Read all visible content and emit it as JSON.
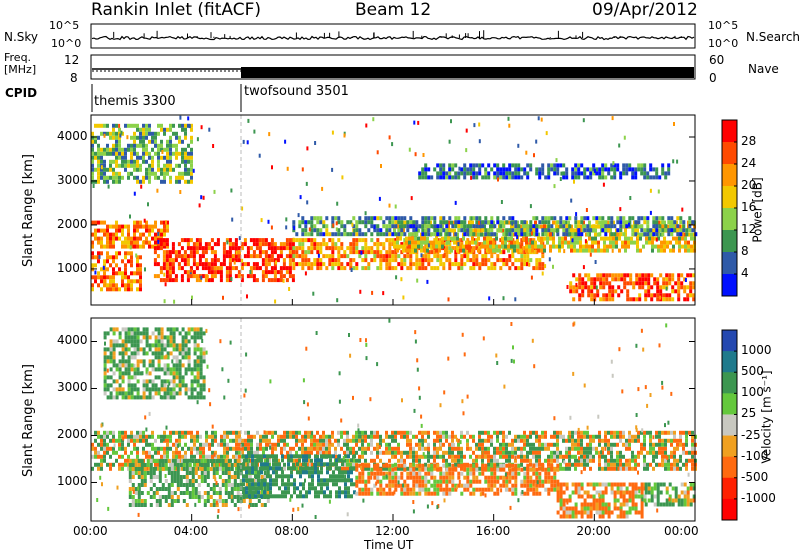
{
  "header": {
    "station": "Rankin Inlet (fitACF)",
    "beam": "Beam 12",
    "date": "09/Apr/2012"
  },
  "status_panels": {
    "nsky_label": "N.Sky",
    "nsearch_label": "N.Search",
    "freq_label_1": "Freq.",
    "freq_label_2": "[MHz]",
    "nave_label": "Nave",
    "cpid_label": "CPID",
    "noise_ticks_left": [
      "10^5",
      "10^0"
    ],
    "noise_ticks_right": [
      "10^5",
      "10^0"
    ],
    "freq_ticks": [
      "12",
      "8"
    ],
    "nave_ticks": [
      "60",
      "0"
    ],
    "cpid_segments": [
      {
        "name": "themis 3300",
        "start_hour": 0,
        "end_hour": 6.05
      },
      {
        "name": "twofsound 3501",
        "start_hour": 6.05,
        "end_hour": 24
      }
    ]
  },
  "axes": {
    "ylabel": "Slant Range [km]",
    "y_ticks": [
      "4000",
      "3000",
      "2000",
      "1000"
    ],
    "x_ticks": [
      "00:00",
      "04:00",
      "08:00",
      "12:00",
      "16:00",
      "20:00",
      "00:00"
    ],
    "xlabel": "Time UT"
  },
  "power_colorbar": {
    "label": "Power [dB]",
    "ticks": [
      "28",
      "24",
      "20",
      "16",
      "12",
      "8",
      "4"
    ],
    "colors": [
      "#ff0000",
      "#ff4a00",
      "#ff9600",
      "#f2c800",
      "#8cd24a",
      "#3c9650",
      "#2f5aa8",
      "#0010ff"
    ]
  },
  "velocity_colorbar": {
    "label": "Velocity [m s⁻¹]",
    "ticks": [
      "1000",
      "500",
      "100",
      "25",
      "-25",
      "-100",
      "-500",
      "-1000"
    ],
    "colors": [
      "#2448b0",
      "#1f7a8c",
      "#3c9650",
      "#64c83c",
      "#c8c8c0",
      "#f0a020",
      "#ff6a10",
      "#ff2000",
      "#ff0000"
    ]
  },
  "chart_data": {
    "type": "heatmap",
    "x_range_hours": [
      0,
      24
    ],
    "y_range_km": [
      180,
      4500
    ],
    "power_regions": [
      {
        "t0": 0.0,
        "t1": 3.0,
        "r0": 1550,
        "r1": 2100,
        "value_db": 24
      },
      {
        "t0": 0.0,
        "t1": 2.0,
        "r0": 550,
        "r1": 1400,
        "value_db": 24
      },
      {
        "t0": 2.5,
        "t1": 8.0,
        "r0": 750,
        "r1": 1700,
        "value_db": 28
      },
      {
        "t0": 8.0,
        "t1": 18.0,
        "r0": 1000,
        "r1": 1700,
        "value_db": 22
      },
      {
        "t0": 12.0,
        "t1": 24.0,
        "r0": 1400,
        "r1": 2100,
        "value_db": 18
      },
      {
        "t0": 8.0,
        "t1": 24.0,
        "r0": 1800,
        "r1": 2200,
        "value_db": 10
      },
      {
        "t0": 19.0,
        "t1": 24.0,
        "r0": 350,
        "r1": 900,
        "value_db": 26
      },
      {
        "t0": 0.0,
        "t1": 4.0,
        "r0": 3000,
        "r1": 4300,
        "value_db": 12
      },
      {
        "t0": 13.0,
        "t1": 23.0,
        "r0": 3100,
        "r1": 3400,
        "value_db": 6
      }
    ],
    "velocity_regions": [
      {
        "t0": 0.0,
        "t1": 24.0,
        "r0": 1300,
        "r1": 2100,
        "value_ms": 0
      },
      {
        "t0": 1.5,
        "t1": 7.0,
        "r0": 500,
        "r1": 1500,
        "value_ms": 150
      },
      {
        "t0": 6.0,
        "t1": 10.5,
        "r0": 700,
        "r1": 1600,
        "value_ms": 400
      },
      {
        "t0": 10.5,
        "t1": 18.5,
        "r0": 800,
        "r1": 1400,
        "value_ms": -150
      },
      {
        "t0": 18.5,
        "t1": 22.0,
        "r0": 300,
        "r1": 1000,
        "value_ms": -150
      },
      {
        "t0": 22.0,
        "t1": 24.0,
        "r0": 500,
        "r1": 1000,
        "value_ms": 120
      },
      {
        "t0": 0.5,
        "t1": 4.5,
        "r0": 2800,
        "r1": 4300,
        "value_ms": 150
      }
    ]
  }
}
